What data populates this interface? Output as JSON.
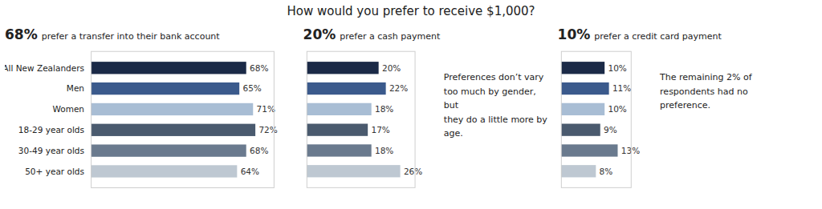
{
  "title": "How would you prefer to receive $1,000?",
  "chart_data": [
    {
      "type": "bar",
      "orientation": "horizontal",
      "title": "68%",
      "subtitle": "prefer a transfer into their bank account",
      "categories": [
        "All New Zealanders",
        "Men",
        "Women",
        "18-29 year olds",
        "30-49 year olds",
        "50+ year olds"
      ],
      "values": [
        68,
        65,
        71,
        72,
        68,
        64
      ],
      "value_labels": [
        "68%",
        "65%",
        "71%",
        "72%",
        "68%",
        "64%"
      ],
      "colors": [
        "#1b2a47",
        "#3b5a8c",
        "#a8bdd4",
        "#4a5a6e",
        "#6a7a8e",
        "#bec8d2"
      ],
      "xlim": [
        0,
        80
      ],
      "data_labels": true,
      "tick_labels": "y"
    },
    {
      "type": "bar",
      "orientation": "horizontal",
      "title": "20%",
      "subtitle": "prefer a cash payment",
      "categories": [
        "All New Zealanders",
        "Men",
        "Women",
        "18-29 year olds",
        "30-49 year olds",
        "50+ year olds"
      ],
      "values": [
        20,
        22,
        18,
        17,
        18,
        26
      ],
      "value_labels": [
        "20%",
        "22%",
        "18%",
        "17%",
        "18%",
        "26%"
      ],
      "colors": [
        "#1b2a47",
        "#3b5a8c",
        "#a8bdd4",
        "#4a5a6e",
        "#6a7a8e",
        "#bec8d2"
      ],
      "xlim": [
        0,
        30
      ],
      "data_labels": true,
      "tick_labels": false,
      "annotations": [
        "Preferences don’t vary\ntoo much by gender, but\nthey do a little more by\nage."
      ]
    },
    {
      "type": "bar",
      "orientation": "horizontal",
      "title": "10%",
      "subtitle": "prefer a credit card payment",
      "categories": [
        "All New Zealanders",
        "Men",
        "Women",
        "18-29 year olds",
        "30-49 year olds",
        "50+ year olds"
      ],
      "values": [
        10,
        11,
        10,
        9,
        13,
        8
      ],
      "value_labels": [
        "10%",
        "11%",
        "10%",
        "9%",
        "13%",
        "8%"
      ],
      "colors": [
        "#1b2a47",
        "#3b5a8c",
        "#a8bdd4",
        "#4a5a6e",
        "#6a7a8e",
        "#bec8d2"
      ],
      "xlim": [
        0,
        16
      ],
      "data_labels": true,
      "tick_labels": false,
      "annotations": [
        "The remaining 2% of\nrespondents had no\npreference."
      ]
    }
  ]
}
